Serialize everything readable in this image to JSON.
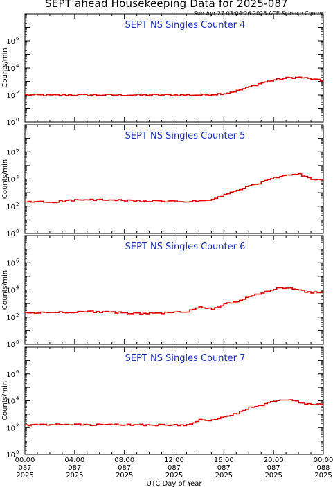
{
  "title": "SEPT ahead Housekeeping Data for 2025-087",
  "timestamp": "Sun Apr 27 03:04:26 2025 ACE Science Center",
  "xlabel": "UTC Day of Year",
  "colors": {
    "trace": "#e00000",
    "panel_title": "#1c2ebf",
    "axes": "#000000"
  },
  "chart_data": [
    {
      "type": "line",
      "title": "SEPT NS Singles Counter 4",
      "ylabel": "Counts/min",
      "yscale": "log",
      "ylim": [
        1,
        100000000
      ],
      "x": [
        0,
        1,
        2,
        3,
        4,
        5,
        6,
        7,
        8,
        9,
        10,
        11,
        12,
        13,
        14,
        15,
        16,
        17,
        18,
        19,
        20,
        21,
        22,
        23,
        24
      ],
      "values": [
        100,
        100,
        95,
        100,
        100,
        100,
        100,
        100,
        100,
        100,
        100,
        100,
        100,
        100,
        100,
        110,
        130,
        200,
        400,
        800,
        1300,
        1800,
        2000,
        1500,
        1000
      ]
    },
    {
      "type": "line",
      "title": "SEPT NS Singles Counter 5",
      "ylabel": "Counts/min",
      "yscale": "log",
      "ylim": [
        1,
        100000000
      ],
      "x": [
        0,
        1,
        2,
        3,
        4,
        5,
        6,
        7,
        8,
        9,
        10,
        11,
        12,
        13,
        14,
        15,
        16,
        17,
        18,
        19,
        20,
        21,
        22,
        23,
        24
      ],
      "values": [
        200,
        230,
        200,
        250,
        280,
        300,
        290,
        280,
        260,
        250,
        240,
        230,
        230,
        220,
        250,
        300,
        700,
        1500,
        3000,
        6000,
        12000,
        20000,
        22000,
        10000,
        9000
      ]
    },
    {
      "type": "line",
      "title": "SEPT NS Singles Counter 6",
      "ylabel": "Counts/min",
      "yscale": "log",
      "ylim": [
        1,
        100000000
      ],
      "x": [
        0,
        1,
        2,
        3,
        4,
        5,
        6,
        7,
        8,
        9,
        10,
        11,
        12,
        13,
        14,
        15,
        16,
        17,
        18,
        19,
        20,
        21,
        22,
        23,
        24
      ],
      "values": [
        200,
        210,
        220,
        230,
        240,
        250,
        240,
        220,
        200,
        190,
        190,
        200,
        220,
        250,
        600,
        400,
        900,
        1500,
        3000,
        6000,
        12000,
        15000,
        10000,
        6000,
        8000
      ]
    },
    {
      "type": "line",
      "title": "SEPT NS Singles Counter 7",
      "ylabel": "Counts/min",
      "yscale": "log",
      "ylim": [
        1,
        100000000
      ],
      "x": [
        0,
        1,
        2,
        3,
        4,
        5,
        6,
        7,
        8,
        9,
        10,
        11,
        12,
        13,
        14,
        15,
        16,
        17,
        18,
        19,
        20,
        21,
        22,
        23,
        24
      ],
      "values": [
        150,
        160,
        160,
        170,
        165,
        160,
        160,
        160,
        165,
        160,
        160,
        160,
        150,
        160,
        400,
        350,
        600,
        1200,
        3000,
        5000,
        9000,
        12000,
        8000,
        5000,
        6000
      ]
    }
  ],
  "y_tick_labels": [
    {
      "base": "10",
      "exp": "0",
      "v": 1
    },
    {
      "base": "10",
      "exp": "2",
      "v": 100
    },
    {
      "base": "10",
      "exp": "4",
      "v": 10000
    },
    {
      "base": "10",
      "exp": "6",
      "v": 1000000
    }
  ],
  "x_tick_labels": [
    {
      "time": "00:00",
      "day": "087",
      "year": "2025",
      "h": 0
    },
    {
      "time": "04:00",
      "day": "087",
      "year": "2025",
      "h": 4
    },
    {
      "time": "08:00",
      "day": "087",
      "year": "2025",
      "h": 8
    },
    {
      "time": "12:00",
      "day": "087",
      "year": "2025",
      "h": 12
    },
    {
      "time": "16:00",
      "day": "087",
      "year": "2025",
      "h": 16
    },
    {
      "time": "20:00",
      "day": "087",
      "year": "2025",
      "h": 20
    },
    {
      "time": "00:00",
      "day": "088",
      "year": "2025",
      "h": 24
    }
  ]
}
